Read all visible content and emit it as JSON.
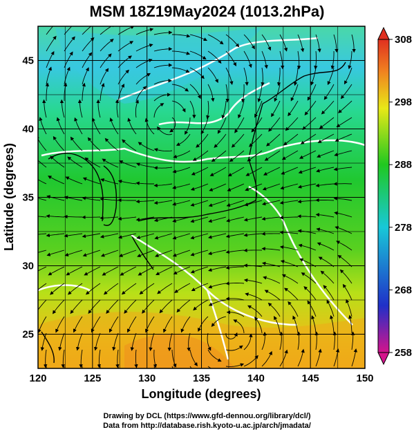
{
  "title": "MSM 18Z19May2024 (1013.2hPa)",
  "x_axis": {
    "label": "Longitude (degrees)",
    "range": [
      120,
      150
    ],
    "ticks": [
      "120",
      "125",
      "130",
      "135",
      "140",
      "145",
      "150"
    ]
  },
  "y_axis": {
    "label": "Latitude (degrees)",
    "range": [
      22.5,
      47.5
    ],
    "ticks": [
      "25",
      "30",
      "35",
      "40",
      "45"
    ]
  },
  "colorbar": {
    "range": [
      258,
      308
    ],
    "ticks": [
      "308",
      "298",
      "288",
      "278",
      "268",
      "258"
    ],
    "colors": [
      "#d4148c",
      "#2030c8",
      "#18c8d8",
      "#20c820",
      "#e8e818",
      "#f08020",
      "#e03020"
    ]
  },
  "credits": {
    "line1": "Drawing by DCL (https://www.gfd-dennou.org/library/dcl/)",
    "line2": "Data from http://database.rish.kyoto-u.ac.jp/arch/jmadata/"
  },
  "grid_lines": true,
  "streamlines": true
}
